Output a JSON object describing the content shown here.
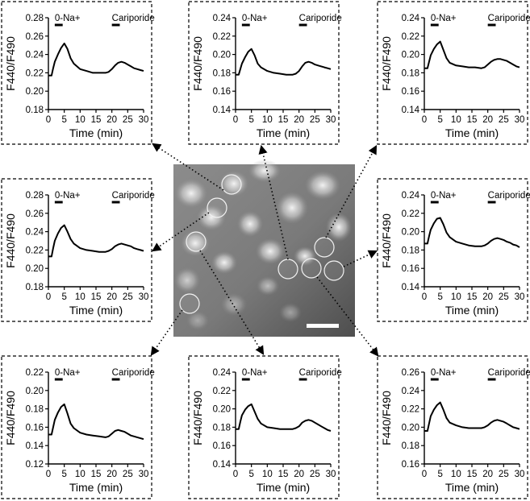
{
  "chart_data": [
    {
      "type": "line",
      "xlabel": "Time (min)",
      "ylabel": "F440/F490",
      "xlim": [
        0,
        30
      ],
      "xticks": [
        0,
        5,
        10,
        15,
        20,
        25,
        30
      ],
      "ylim": [
        0.18,
        0.28
      ],
      "yticks": [
        0.18,
        0.2,
        0.22,
        0.24,
        0.26,
        0.28
      ],
      "annotations": [
        {
          "label": "0-Na+",
          "x": [
            2,
            4.5
          ]
        },
        {
          "label": "Cariporide",
          "x": [
            20,
            22.5
          ]
        }
      ],
      "x": [
        0,
        1,
        1.5,
        2,
        3,
        4,
        5,
        6,
        7,
        8,
        10,
        12,
        14,
        16,
        18,
        19,
        20,
        21,
        22,
        23,
        24,
        25,
        26,
        27,
        28,
        29,
        30
      ],
      "y": [
        0.217,
        0.217,
        0.225,
        0.232,
        0.24,
        0.247,
        0.252,
        0.246,
        0.236,
        0.23,
        0.224,
        0.222,
        0.22,
        0.22,
        0.22,
        0.221,
        0.224,
        0.228,
        0.231,
        0.232,
        0.231,
        0.229,
        0.227,
        0.225,
        0.224,
        0.223,
        0.222
      ]
    },
    {
      "type": "line",
      "xlabel": "Time (min)",
      "ylabel": "F440/F490",
      "xlim": [
        0,
        30
      ],
      "xticks": [
        0,
        5,
        10,
        15,
        20,
        25,
        30
      ],
      "ylim": [
        0.14,
        0.24
      ],
      "yticks": [
        0.14,
        0.16,
        0.18,
        0.2,
        0.22,
        0.24
      ],
      "annotations": [
        {
          "label": "0-Na+",
          "x": [
            2,
            4.5
          ]
        },
        {
          "label": "Cariporide",
          "x": [
            20,
            22.5
          ]
        }
      ],
      "x": [
        0,
        1,
        1.5,
        2,
        3,
        4,
        5,
        6,
        7,
        8,
        10,
        12,
        14,
        16,
        18,
        19,
        20,
        21,
        22,
        23,
        24,
        25,
        26,
        27,
        28,
        29,
        30
      ],
      "y": [
        0.178,
        0.178,
        0.184,
        0.19,
        0.197,
        0.203,
        0.206,
        0.199,
        0.19,
        0.186,
        0.182,
        0.18,
        0.179,
        0.178,
        0.178,
        0.179,
        0.182,
        0.187,
        0.191,
        0.192,
        0.191,
        0.189,
        0.188,
        0.187,
        0.186,
        0.185,
        0.184
      ]
    },
    {
      "type": "line",
      "xlabel": "Time (min)",
      "ylabel": "F440/F490",
      "xlim": [
        0,
        30
      ],
      "xticks": [
        0,
        5,
        10,
        15,
        20,
        25,
        30
      ],
      "ylim": [
        0.14,
        0.24
      ],
      "yticks": [
        0.14,
        0.16,
        0.18,
        0.2,
        0.22,
        0.24
      ],
      "annotations": [
        {
          "label": "0-Na+",
          "x": [
            2,
            4.5
          ]
        },
        {
          "label": "Cariporide",
          "x": [
            20,
            22.5
          ]
        }
      ],
      "x": [
        0,
        1,
        1.5,
        2,
        3,
        4,
        5,
        6,
        7,
        8,
        10,
        12,
        14,
        16,
        18,
        19,
        20,
        21,
        22,
        23,
        24,
        25,
        26,
        27,
        28,
        29,
        30
      ],
      "y": [
        0.185,
        0.185,
        0.192,
        0.199,
        0.206,
        0.211,
        0.214,
        0.205,
        0.196,
        0.191,
        0.188,
        0.187,
        0.186,
        0.186,
        0.185,
        0.186,
        0.189,
        0.192,
        0.194,
        0.195,
        0.195,
        0.194,
        0.193,
        0.191,
        0.189,
        0.187,
        0.186
      ]
    },
    {
      "type": "line",
      "xlabel": "Time (min)",
      "ylabel": "F440/F490",
      "xlim": [
        0,
        30
      ],
      "xticks": [
        0,
        5,
        10,
        15,
        20,
        25,
        30
      ],
      "ylim": [
        0.18,
        0.28
      ],
      "yticks": [
        0.18,
        0.2,
        0.22,
        0.24,
        0.26,
        0.28
      ],
      "annotations": [
        {
          "label": "0-Na+",
          "x": [
            2,
            4.5
          ]
        },
        {
          "label": "Cariporide",
          "x": [
            20,
            22.5
          ]
        }
      ],
      "x": [
        0,
        1,
        1.5,
        2,
        3,
        4,
        5,
        6,
        7,
        8,
        10,
        12,
        14,
        16,
        18,
        19,
        20,
        21,
        22,
        23,
        24,
        25,
        26,
        27,
        28,
        29,
        30
      ],
      "y": [
        0.213,
        0.213,
        0.222,
        0.23,
        0.238,
        0.244,
        0.247,
        0.24,
        0.232,
        0.227,
        0.222,
        0.22,
        0.219,
        0.218,
        0.218,
        0.219,
        0.221,
        0.224,
        0.226,
        0.227,
        0.226,
        0.225,
        0.224,
        0.222,
        0.221,
        0.22,
        0.219
      ]
    },
    {
      "type": "line",
      "xlabel": "Time (min)",
      "ylabel": "F440/F490",
      "xlim": [
        0,
        30
      ],
      "xticks": [
        0,
        5,
        10,
        15,
        20,
        25,
        30
      ],
      "ylim": [
        0.14,
        0.24
      ],
      "yticks": [
        0.14,
        0.16,
        0.18,
        0.2,
        0.22,
        0.24
      ],
      "annotations": [
        {
          "label": "0-Na+",
          "x": [
            2,
            4.5
          ]
        },
        {
          "label": "Cariporide",
          "x": [
            20,
            22.5
          ]
        }
      ],
      "x": [
        0,
        1,
        1.5,
        2,
        3,
        4,
        5,
        6,
        7,
        8,
        10,
        12,
        14,
        16,
        18,
        19,
        20,
        21,
        22,
        23,
        24,
        25,
        26,
        27,
        28,
        29,
        30
      ],
      "y": [
        0.187,
        0.187,
        0.195,
        0.202,
        0.209,
        0.214,
        0.215,
        0.208,
        0.199,
        0.194,
        0.189,
        0.187,
        0.185,
        0.184,
        0.184,
        0.185,
        0.187,
        0.19,
        0.192,
        0.193,
        0.192,
        0.191,
        0.189,
        0.188,
        0.186,
        0.185,
        0.183
      ]
    },
    {
      "type": "line",
      "xlabel": "Time (min)",
      "ylabel": "F440/F490",
      "xlim": [
        0,
        30
      ],
      "xticks": [
        0,
        5,
        10,
        15,
        20,
        25,
        30
      ],
      "ylim": [
        0.12,
        0.22
      ],
      "yticks": [
        0.12,
        0.14,
        0.16,
        0.18,
        0.2,
        0.22
      ],
      "annotations": [
        {
          "label": "0-Na+",
          "x": [
            2,
            4.5
          ]
        },
        {
          "label": "Cariporide",
          "x": [
            20,
            22.5
          ]
        }
      ],
      "x": [
        0,
        1,
        1.5,
        2,
        3,
        4,
        5,
        6,
        7,
        8,
        10,
        12,
        14,
        16,
        18,
        19,
        20,
        21,
        22,
        23,
        24,
        25,
        26,
        27,
        28,
        29,
        30
      ],
      "y": [
        0.152,
        0.152,
        0.16,
        0.168,
        0.176,
        0.182,
        0.185,
        0.175,
        0.164,
        0.159,
        0.154,
        0.152,
        0.151,
        0.15,
        0.149,
        0.15,
        0.153,
        0.156,
        0.157,
        0.156,
        0.155,
        0.153,
        0.151,
        0.15,
        0.149,
        0.148,
        0.147
      ]
    },
    {
      "type": "line",
      "xlabel": "Time (min)",
      "ylabel": "F440/F490",
      "xlim": [
        0,
        30
      ],
      "xticks": [
        0,
        5,
        10,
        15,
        20,
        25,
        30
      ],
      "ylim": [
        0.14,
        0.24
      ],
      "yticks": [
        0.14,
        0.16,
        0.18,
        0.2,
        0.22,
        0.24
      ],
      "annotations": [
        {
          "label": "0-Na+",
          "x": [
            2,
            4.5
          ]
        },
        {
          "label": "Cariporide",
          "x": [
            20,
            22.5
          ]
        }
      ],
      "x": [
        0,
        1,
        1.5,
        2,
        3,
        4,
        5,
        6,
        7,
        8,
        10,
        12,
        14,
        16,
        18,
        19,
        20,
        21,
        22,
        23,
        24,
        25,
        26,
        27,
        28,
        29,
        30
      ],
      "y": [
        0.178,
        0.178,
        0.186,
        0.193,
        0.199,
        0.203,
        0.205,
        0.197,
        0.189,
        0.184,
        0.18,
        0.179,
        0.178,
        0.178,
        0.178,
        0.179,
        0.181,
        0.185,
        0.187,
        0.188,
        0.187,
        0.185,
        0.183,
        0.181,
        0.179,
        0.177,
        0.176
      ]
    },
    {
      "type": "line",
      "xlabel": "Time (min)",
      "ylabel": "F440/F490",
      "xlim": [
        0,
        30
      ],
      "xticks": [
        0,
        5,
        10,
        15,
        20,
        25,
        30
      ],
      "ylim": [
        0.16,
        0.26
      ],
      "yticks": [
        0.16,
        0.18,
        0.2,
        0.22,
        0.24,
        0.26
      ],
      "annotations": [
        {
          "label": "0-Na+",
          "x": [
            2,
            4.5
          ]
        },
        {
          "label": "Cariporide",
          "x": [
            20,
            22.5
          ]
        }
      ],
      "x": [
        0,
        1,
        1.5,
        2,
        3,
        4,
        5,
        6,
        7,
        8,
        10,
        12,
        14,
        16,
        18,
        19,
        20,
        21,
        22,
        23,
        24,
        25,
        26,
        27,
        28,
        29,
        30
      ],
      "y": [
        0.196,
        0.196,
        0.204,
        0.212,
        0.219,
        0.224,
        0.227,
        0.219,
        0.21,
        0.205,
        0.202,
        0.2,
        0.199,
        0.199,
        0.199,
        0.2,
        0.202,
        0.205,
        0.207,
        0.208,
        0.207,
        0.206,
        0.204,
        0.202,
        0.2,
        0.199,
        0.198
      ]
    }
  ]
}
